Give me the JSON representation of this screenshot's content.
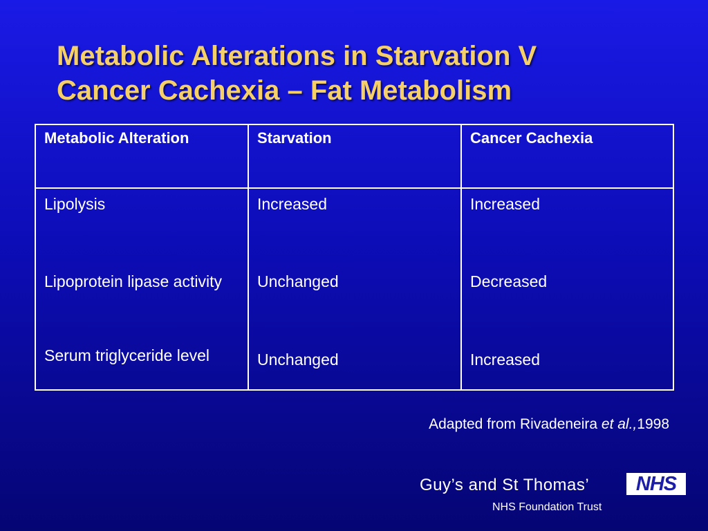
{
  "slide": {
    "title_line1": "Metabolic Alterations in Starvation V",
    "title_line2": "Cancer Cachexia – Fat Metabolism"
  },
  "table": {
    "headers": [
      "Metabolic Alteration",
      "Starvation",
      "Cancer Cachexia"
    ],
    "rows": [
      {
        "alteration": "Lipolysis",
        "starvation": "Increased",
        "cachexia": "Increased"
      },
      {
        "alteration": "Lipoprotein lipase activity",
        "starvation": "Unchanged",
        "cachexia": "Decreased"
      },
      {
        "alteration": "Serum triglyceride level",
        "starvation": "Unchanged",
        "cachexia": "Increased"
      }
    ]
  },
  "citation": {
    "prefix": "Adapted from Rivadeneira ",
    "italic": "et al.,",
    "year": "1998"
  },
  "footer": {
    "org_name": "Guy’s and St Thomas’",
    "badge": "NHS",
    "subtitle": "NHS Foundation Trust"
  },
  "colors": {
    "background": "#1414d8",
    "title": "#f4cf6a",
    "text": "#ffffff"
  }
}
